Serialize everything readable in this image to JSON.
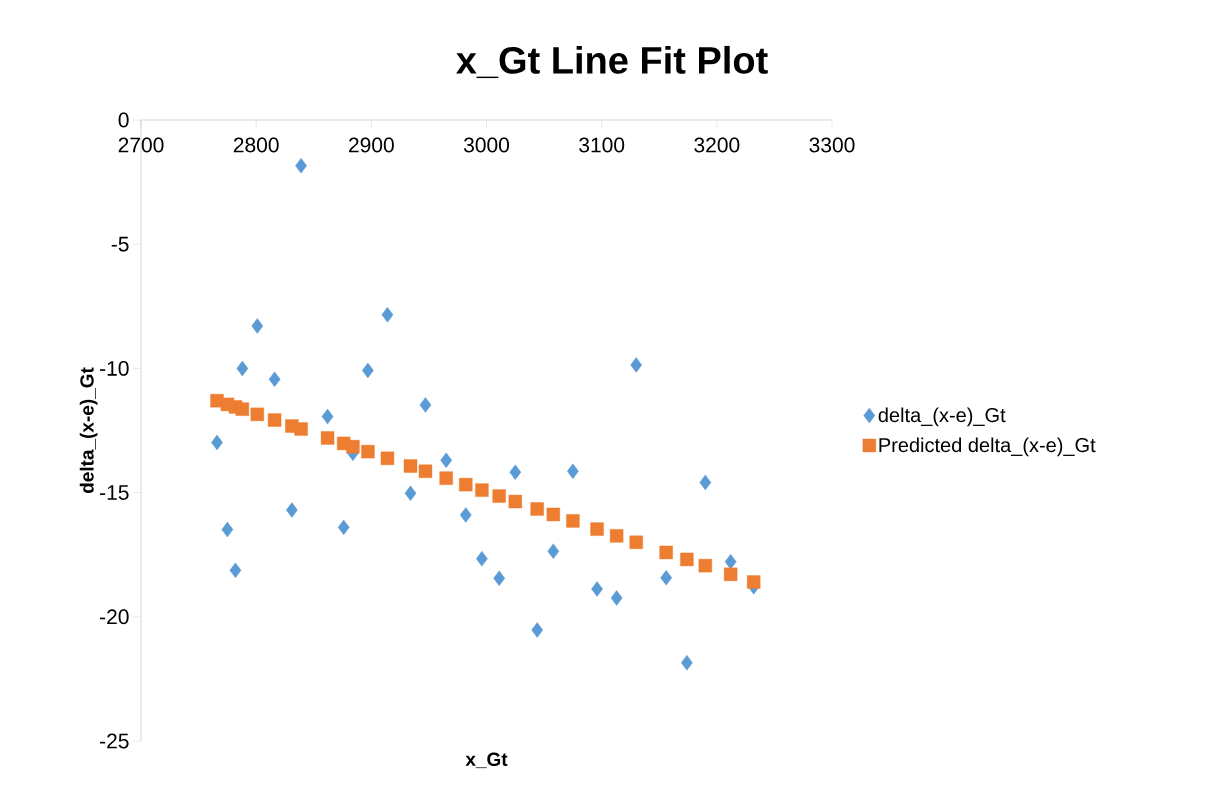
{
  "chart_data": {
    "type": "scatter",
    "title": "x_Gt Line Fit  Plot",
    "xlabel": "x_Gt",
    "ylabel": "delta_(x-e)_Gt",
    "xlim": [
      2700,
      3300
    ],
    "ylim": [
      -25,
      0
    ],
    "xticks": [
      2700,
      2800,
      2900,
      3000,
      3100,
      3200,
      3300
    ],
    "yticks": [
      -25,
      -20,
      -15,
      -10,
      -5,
      0
    ],
    "grid": false,
    "legend": "right",
    "series": [
      {
        "name": "delta_(x-e)_Gt",
        "color": "#5b9bd5",
        "marker": "diamond",
        "x": [
          2766,
          2775,
          2782,
          2788,
          2801,
          2816,
          2831,
          2839,
          2862,
          2876,
          2884,
          2897,
          2914,
          2934,
          2947,
          2965,
          2982,
          2996,
          3011,
          3025,
          3044,
          3058,
          3075,
          3096,
          3113,
          3130,
          3156,
          3174,
          3190,
          3212,
          3232
        ],
        "values": [
          -12.98,
          -16.49,
          -18.13,
          -10.0,
          -8.29,
          -10.44,
          -15.7,
          -1.84,
          -11.94,
          -16.4,
          -13.42,
          -10.08,
          -7.84,
          -15.03,
          -11.47,
          -13.7,
          -15.9,
          -17.66,
          -18.45,
          -14.18,
          -20.53,
          -17.36,
          -14.14,
          -18.88,
          -19.24,
          -9.86,
          -18.43,
          -21.85,
          -14.59,
          -17.78,
          -18.79
        ]
      },
      {
        "name": "Predicted delta_(x-e)_Gt",
        "color": "#ed7d31",
        "marker": "square",
        "x": [
          2766,
          2775,
          2782,
          2788,
          2801,
          2816,
          2831,
          2839,
          2862,
          2876,
          2884,
          2897,
          2914,
          2934,
          2947,
          2965,
          2982,
          2996,
          3011,
          3025,
          3044,
          3058,
          3075,
          3096,
          3113,
          3130,
          3156,
          3174,
          3190,
          3212,
          3232
        ],
        "values": [
          -11.3,
          -11.45,
          -11.55,
          -11.64,
          -11.85,
          -12.08,
          -12.32,
          -12.44,
          -12.8,
          -13.02,
          -13.15,
          -13.35,
          -13.62,
          -13.93,
          -14.14,
          -14.42,
          -14.68,
          -14.9,
          -15.14,
          -15.36,
          -15.66,
          -15.88,
          -16.14,
          -16.47,
          -16.74,
          -17.0,
          -17.41,
          -17.69,
          -17.94,
          -18.29,
          -18.6
        ]
      }
    ]
  }
}
